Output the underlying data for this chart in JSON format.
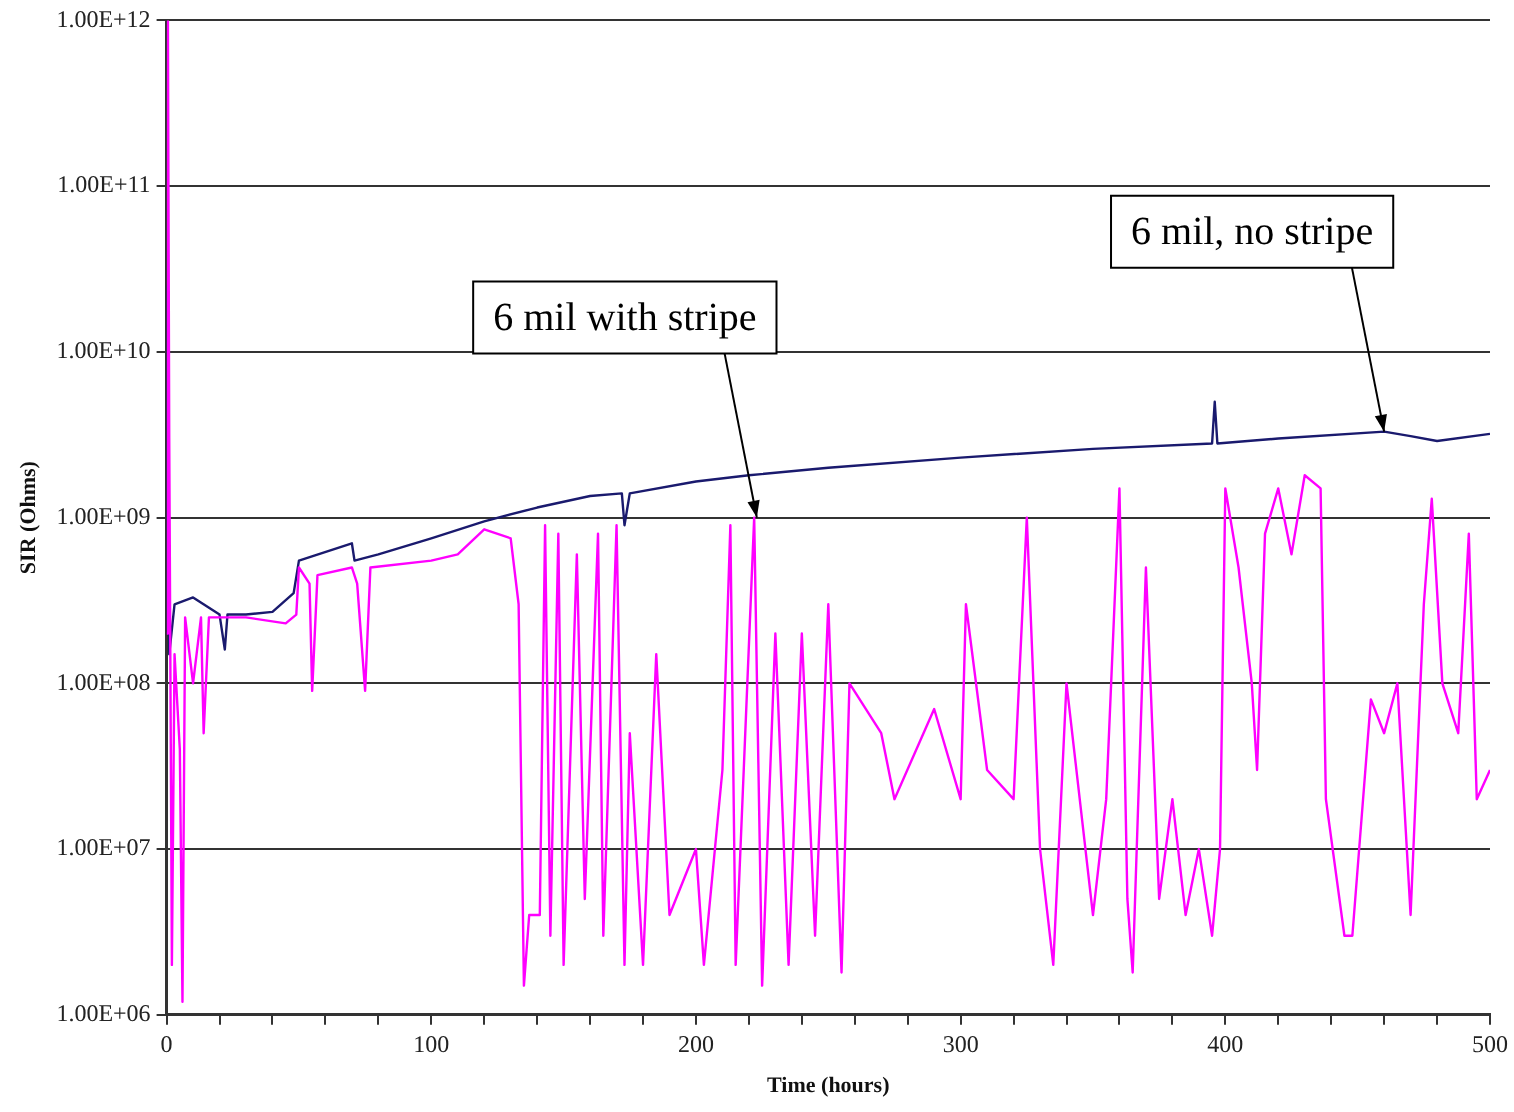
{
  "chart_data": {
    "type": "line",
    "xlabel": "Time (hours)",
    "ylabel": "SIR (Ohms)",
    "log": "y",
    "grid": "y",
    "legend": false,
    "marker": "none",
    "line_style": "solid",
    "xlim": [
      0,
      500
    ],
    "ylim": [
      1000000,
      1000000000000
    ],
    "xticks": [
      0,
      {
        "value": 20,
        "label": null
      },
      {
        "value": 40,
        "label": null
      },
      {
        "value": 60,
        "label": null
      },
      {
        "value": 80,
        "label": null
      },
      100,
      {
        "value": 120,
        "label": null
      },
      {
        "value": 140,
        "label": null
      },
      {
        "value": 160,
        "label": null
      },
      {
        "value": 180,
        "label": null
      },
      200,
      {
        "value": 220,
        "label": null
      },
      {
        "value": 240,
        "label": null
      },
      {
        "value": 260,
        "label": null
      },
      {
        "value": 280,
        "label": null
      },
      300,
      {
        "value": 320,
        "label": null
      },
      {
        "value": 340,
        "label": null
      },
      {
        "value": 360,
        "label": null
      },
      {
        "value": 380,
        "label": null
      },
      400,
      {
        "value": 420,
        "label": null
      },
      {
        "value": 440,
        "label": null
      },
      {
        "value": 460,
        "label": null
      },
      {
        "value": 480,
        "label": null
      },
      500
    ],
    "yticks": [
      {
        "value": 1000000,
        "label": "1.00E+06"
      },
      {
        "value": 10000000,
        "label": "1.00E+07"
      },
      {
        "value": 100000000,
        "label": "1.00E+08"
      },
      {
        "value": 1000000000,
        "label": "1.00E+09"
      },
      {
        "value": 10000000000,
        "label": "1.00E+10"
      },
      {
        "value": 100000000000,
        "label": "1.00E+11"
      },
      {
        "value": 1000000000000,
        "label": "1.00E+12"
      }
    ],
    "series": [
      {
        "color": "#ff00ff",
        "x": [
          0,
          0.5,
          1,
          2,
          3,
          5,
          6,
          7,
          10,
          13,
          14,
          16,
          30,
          45,
          49,
          50,
          54,
          55,
          57,
          70,
          72,
          75,
          77,
          100,
          110,
          120,
          130,
          133,
          135,
          137,
          141,
          143,
          145,
          148,
          150,
          155,
          158,
          163,
          165,
          170,
          173,
          175,
          180,
          185,
          190,
          200,
          203,
          210,
          213,
          215,
          222,
          225,
          230,
          235,
          240,
          245,
          250,
          255,
          258,
          270,
          275,
          290,
          300,
          302,
          310,
          320,
          325,
          330,
          335,
          340,
          350,
          355,
          360,
          363,
          365,
          370,
          375,
          380,
          385,
          390,
          395,
          398,
          400,
          405,
          410,
          412,
          415,
          420,
          425,
          430,
          436,
          438,
          445,
          448,
          455,
          460,
          465,
          470,
          475,
          478,
          482,
          488,
          492,
          495,
          500
        ],
        "values": [
          200000000,
          1000000000000,
          3000000000,
          2000000,
          150000000,
          40000000,
          1200000,
          250000000,
          100000000,
          250000000,
          50000000,
          250000000,
          250000000,
          230000000,
          260000000,
          500000000,
          400000000,
          90000000,
          450000000,
          500000000,
          400000000,
          90000000,
          500000000,
          550000000,
          600000000,
          850000000,
          750000000,
          300000000,
          1500000,
          4000000,
          4000000,
          900000000,
          3000000,
          800000000,
          2000000,
          600000000,
          5000000,
          800000000,
          3000000,
          900000000,
          2000000,
          50000000,
          2000000,
          150000000,
          4000000,
          10000000,
          2000000,
          30000000,
          900000000,
          2000000,
          1000000000,
          1500000,
          200000000,
          2000000,
          200000000,
          3000000,
          300000000,
          1800000,
          100000000,
          50000000,
          20000000,
          70000000,
          20000000,
          300000000,
          30000000,
          20000000,
          1000000000,
          10000000,
          2000000,
          100000000,
          4000000,
          20000000,
          1500000000,
          5000000,
          1800000,
          500000000,
          5000000,
          20000000,
          4000000,
          10000000,
          3000000,
          10000000,
          1500000000,
          500000000,
          100000000,
          30000000,
          800000000,
          1500000000,
          600000000,
          1800000000,
          1500000000,
          20000000,
          3000000,
          3000000,
          80000000,
          50000000,
          100000000,
          4000000,
          300000000,
          1300000000,
          100000000,
          50000000,
          800000000,
          20000000,
          30000000
        ]
      },
      {
        "color": "#1a1a6e",
        "x": [
          0,
          0.3,
          1,
          3,
          10,
          20,
          22,
          23,
          30,
          40,
          48,
          50,
          70,
          71,
          80,
          100,
          120,
          140,
          160,
          172,
          173,
          175,
          200,
          220,
          250,
          300,
          350,
          395,
          396,
          397,
          420,
          460,
          470,
          480,
          500
        ],
        "values": [
          200000000,
          25000000000,
          150000000,
          300000000,
          330000000,
          260000000,
          160000000,
          260000000,
          260000000,
          270000000,
          350000000,
          550000000,
          700000000,
          550000000,
          600000000,
          750000000,
          950000000,
          1150000000,
          1350000000,
          1400000000,
          900000000,
          1400000000,
          1650000000,
          1800000000,
          2000000000,
          2300000000,
          2600000000,
          2800000000,
          5000000000,
          2800000000,
          3000000000,
          3300000000,
          3100000000,
          2900000000,
          3200000000
        ]
      }
    ],
    "annotations": [
      {
        "text": "6 mil with stripe",
        "x": 223,
        "y": 1000000000
      },
      {
        "text": "6 mil, no stripe",
        "x": 460,
        "y": 3300000000
      }
    ]
  }
}
